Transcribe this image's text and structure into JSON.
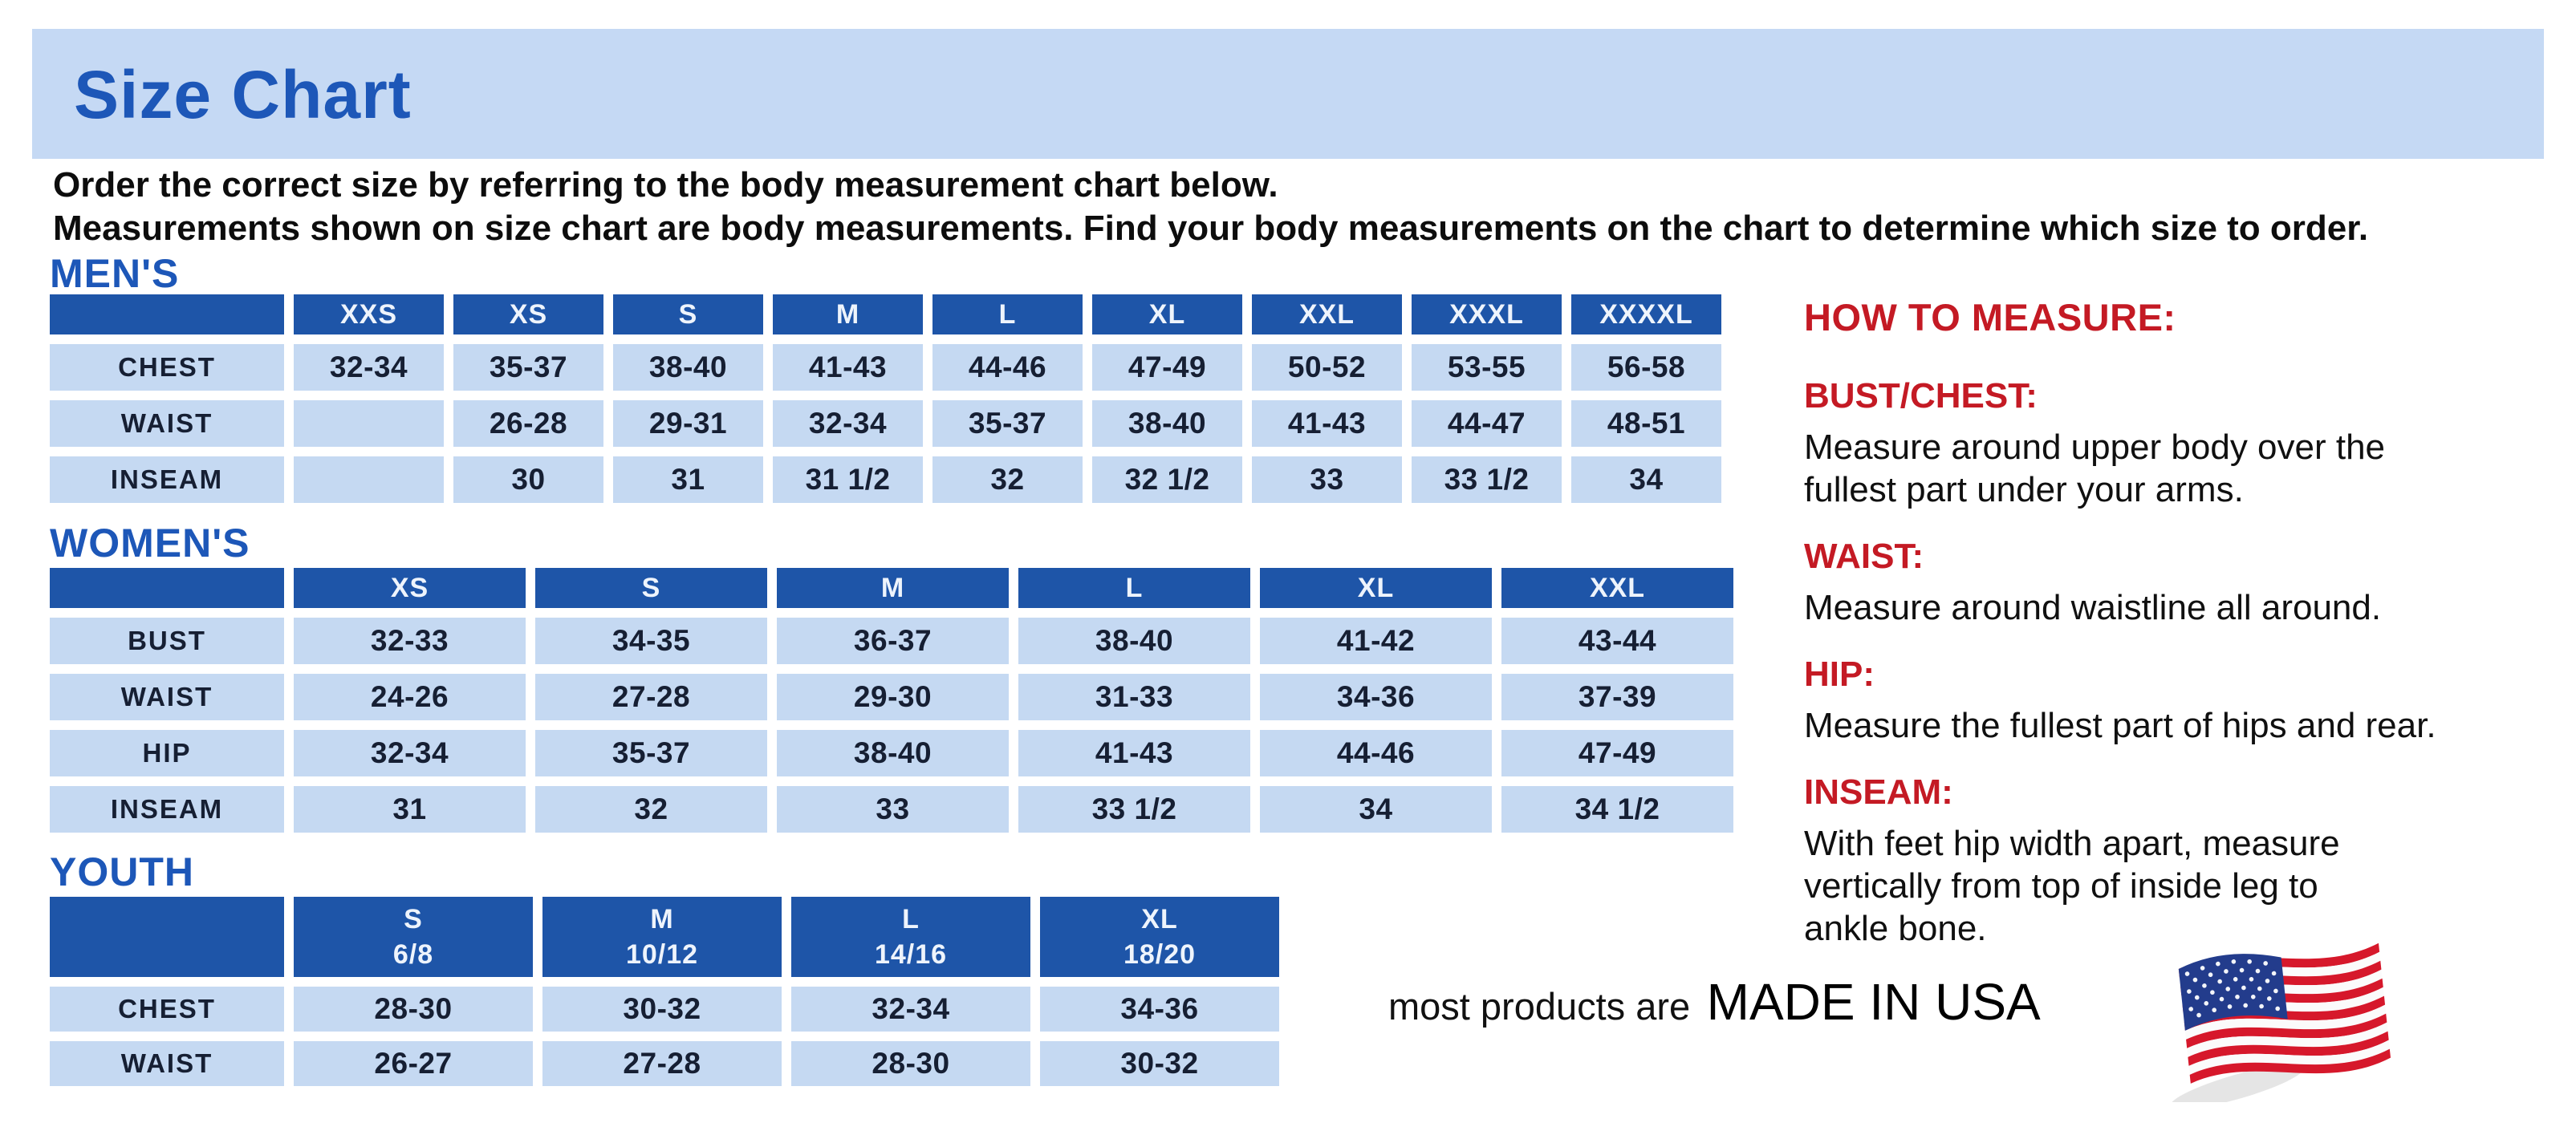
{
  "banner": {
    "title": "Size Chart"
  },
  "intro": {
    "line1": "Order the correct size by referring to the body measurement chart below.",
    "line2": "Measurements shown on size chart are body measurements.  Find your body measurements on the chart to determine which size to order."
  },
  "men": {
    "heading": "MEN'S",
    "headers": [
      "",
      "XXS",
      "XS",
      "S",
      "M",
      "L",
      "XL",
      "XXL",
      "XXXL",
      "XXXXL"
    ],
    "rows": [
      {
        "label": "CHEST",
        "values": [
          "32-34",
          "35-37",
          "38-40",
          "41-43",
          "44-46",
          "47-49",
          "50-52",
          "53-55",
          "56-58"
        ]
      },
      {
        "label": "WAIST",
        "values": [
          "",
          "26-28",
          "29-31",
          "32-34",
          "35-37",
          "38-40",
          "41-43",
          "44-47",
          "48-51"
        ]
      },
      {
        "label": "INSEAM",
        "values": [
          "",
          "30",
          "31",
          "31 1/2",
          "32",
          "32 1/2",
          "33",
          "33 1/2",
          "34"
        ]
      }
    ]
  },
  "women": {
    "heading": "WOMEN'S",
    "headers": [
      "",
      "XS",
      "S",
      "M",
      "L",
      "XL",
      "XXL"
    ],
    "rows": [
      {
        "label": "BUST",
        "values": [
          "32-33",
          "34-35",
          "36-37",
          "38-40",
          "41-42",
          "43-44"
        ]
      },
      {
        "label": "WAIST",
        "values": [
          "24-26",
          "27-28",
          "29-30",
          "31-33",
          "34-36",
          "37-39"
        ]
      },
      {
        "label": "HIP",
        "values": [
          "32-34",
          "35-37",
          "38-40",
          "41-43",
          "44-46",
          "47-49"
        ]
      },
      {
        "label": "INSEAM",
        "values": [
          "31",
          "32",
          "33",
          "33 1/2",
          "34",
          "34 1/2"
        ]
      }
    ]
  },
  "youth": {
    "heading": "YOUTH",
    "headers": [
      {
        "size": "",
        "range": ""
      },
      {
        "size": "S",
        "range": "6/8"
      },
      {
        "size": "M",
        "range": "10/12"
      },
      {
        "size": "L",
        "range": "14/16"
      },
      {
        "size": "XL",
        "range": "18/20"
      }
    ],
    "rows": [
      {
        "label": "CHEST",
        "values": [
          "28-30",
          "30-32",
          "32-34",
          "34-36"
        ]
      },
      {
        "label": "WAIST",
        "values": [
          "26-27",
          "27-28",
          "28-30",
          "30-32"
        ]
      }
    ]
  },
  "measure": {
    "title": "HOW TO MEASURE:",
    "items": [
      {
        "label": "BUST/CHEST:",
        "text": "Measure around upper body over the\nfullest part under your arms."
      },
      {
        "label": "WAIST:",
        "text": "Measure around waistline all around."
      },
      {
        "label": "HIP:",
        "text": "Measure the fullest part of hips and rear."
      },
      {
        "label": "INSEAM:",
        "text": "With feet hip width apart, measure\nvertically from top of inside leg to\nankle bone."
      }
    ]
  },
  "footer": {
    "prefix": "most products are",
    "made": "MADE IN USA",
    "flag_icon": "usa-flag-icon"
  },
  "colors": {
    "brand_blue": "#1d57b8",
    "table_header_blue": "#1e55a8",
    "cell_blue": "#c5d9f2",
    "banner_blue": "#c5d9f4",
    "accent_red": "#c41a24",
    "flag_red": "#d6182b",
    "flag_blue": "#233c8c"
  }
}
